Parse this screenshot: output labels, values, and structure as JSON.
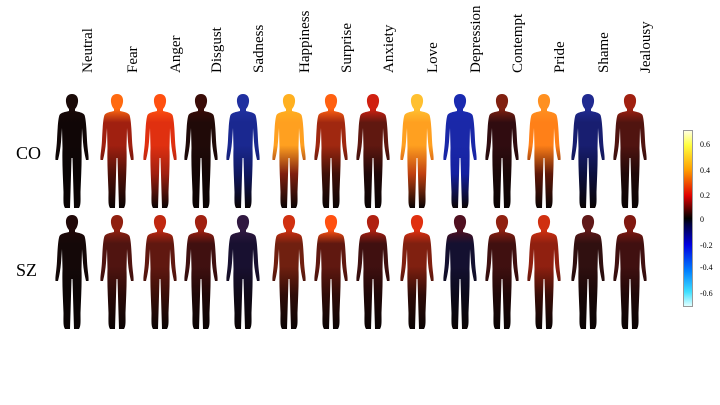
{
  "columns": [
    "Neutral",
    "Fear",
    "Anger",
    "Disgust",
    "Sadness",
    "Happiness",
    "Surprise",
    "Anxiety",
    "Love",
    "Depression",
    "Contempt",
    "Pride",
    "Shame",
    "Jealousy"
  ],
  "rows": [
    {
      "label": "CO",
      "bodies": [
        {
          "head": "#1a0a08",
          "torso": "#100606",
          "limbs": "#0a0505"
        },
        {
          "head": "#ff6a10",
          "torso": "#a02010",
          "limbs": "#501008"
        },
        {
          "head": "#ff5010",
          "torso": "#e03010",
          "limbs": "#a02010"
        },
        {
          "head": "#3a0c08",
          "torso": "#200a08",
          "limbs": "#140606"
        },
        {
          "head": "#2030a0",
          "torso": "#1a2890",
          "limbs": "#101860"
        },
        {
          "head": "#ffb020",
          "torso": "#ffa020",
          "limbs": "#802010"
        },
        {
          "head": "#ff6010",
          "torso": "#a02810",
          "limbs": "#401008"
        },
        {
          "head": "#d02010",
          "torso": "#601810",
          "limbs": "#200808"
        },
        {
          "head": "#ffc030",
          "torso": "#ffa020",
          "limbs": "#c04010"
        },
        {
          "head": "#1a2ab0",
          "torso": "#1a28a8",
          "limbs": "#1420a0"
        },
        {
          "head": "#802010",
          "torso": "#300c10",
          "limbs": "#1a0808"
        },
        {
          "head": "#ff9020",
          "torso": "#ff8018",
          "limbs": "#601808"
        },
        {
          "head": "#202a90",
          "torso": "#181e70",
          "limbs": "#0c1040"
        },
        {
          "head": "#a02010",
          "torso": "#501410",
          "limbs": "#200808"
        }
      ]
    },
    {
      "label": "SZ",
      "bodies": [
        {
          "head": "#200808",
          "torso": "#140808",
          "limbs": "#0c0606"
        },
        {
          "head": "#902010",
          "torso": "#501410",
          "limbs": "#2a0a08"
        },
        {
          "head": "#c02810",
          "torso": "#601810",
          "limbs": "#3a0e08"
        },
        {
          "head": "#a02010",
          "torso": "#401010",
          "limbs": "#200808"
        },
        {
          "head": "#301840",
          "torso": "#181030",
          "limbs": "#100a18"
        },
        {
          "head": "#d03010",
          "torso": "#702010",
          "limbs": "#300c08"
        },
        {
          "head": "#ff5010",
          "torso": "#601810",
          "limbs": "#300c08"
        },
        {
          "head": "#b02010",
          "torso": "#401010",
          "limbs": "#200808"
        },
        {
          "head": "#e03010",
          "torso": "#802010",
          "limbs": "#300c08"
        },
        {
          "head": "#501020",
          "torso": "#141030",
          "limbs": "#0c0a1a"
        },
        {
          "head": "#902010",
          "torso": "#401010",
          "limbs": "#200808"
        },
        {
          "head": "#d03010",
          "torso": "#902010",
          "limbs": "#3a0e08"
        },
        {
          "head": "#601818",
          "torso": "#301010",
          "limbs": "#180808"
        },
        {
          "head": "#801810",
          "torso": "#401010",
          "limbs": "#200808"
        }
      ]
    }
  ],
  "colorbar": {
    "ticks": [
      "0.6",
      "0.4",
      "0.2",
      "0",
      "-0.2",
      "-0.4",
      "-0.6"
    ],
    "range": [
      -0.7,
      0.7
    ]
  }
}
